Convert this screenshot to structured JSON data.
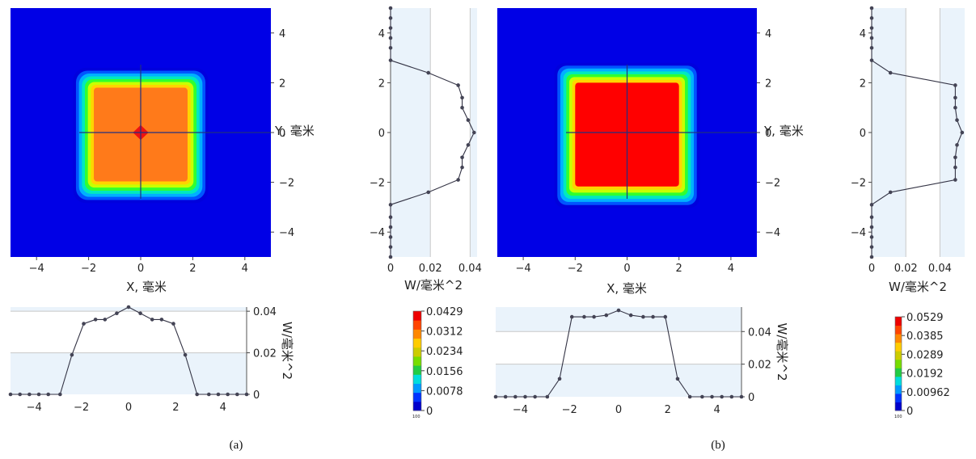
{
  "chart_data": [
    {
      "id": "a",
      "caption": "(a)",
      "heatmap": {
        "type": "heatmap",
        "xlabel": "X, 毫米",
        "ylabel": "Y, 毫米",
        "xlim": [
          -5,
          5
        ],
        "ylim": [
          -5,
          5
        ],
        "xticks": [
          "−4",
          "−2",
          "0",
          "2",
          "4"
        ],
        "yticks": [
          "4",
          "2",
          "0",
          "−2",
          "−4"
        ],
        "xtick_values": [
          -4,
          -2,
          0,
          2,
          4
        ],
        "ytick_values": [
          4,
          2,
          0,
          -2,
          -4
        ],
        "square_half_width": 2.6,
        "plateau_half_width": 1.8,
        "peak_half_width": 0.3,
        "corner_radius": 0.5,
        "plateau_color": "#ff7a1a",
        "peak_color": "#ee1111"
      },
      "profile_y": {
        "type": "line",
        "xlabel": "W/毫米^2",
        "xlim": [
          0,
          0.0435
        ],
        "xticks": [
          "0",
          "0.02",
          "0.04"
        ],
        "xtick_values": [
          0,
          0.02,
          0.04
        ],
        "ylim": [
          -5,
          5
        ],
        "yticks": [
          "4",
          "2",
          "0",
          "−2",
          "−4"
        ],
        "ytick_values": [
          4,
          2,
          0,
          -2,
          -4
        ],
        "y": [
          5,
          4.6,
          4.2,
          3.8,
          3.4,
          2.9,
          2.4,
          1.9,
          1.4,
          1.0,
          0.5,
          0,
          -0.5,
          -1.0,
          -1.4,
          -1.9,
          -2.4,
          -2.9,
          -3.4,
          -3.8,
          -4.2,
          -4.6,
          -5
        ],
        "values": [
          0,
          0,
          0,
          0,
          0,
          0,
          0.019,
          0.034,
          0.036,
          0.036,
          0.039,
          0.042,
          0.039,
          0.036,
          0.036,
          0.034,
          0.019,
          0,
          0,
          0,
          0,
          0,
          0
        ]
      },
      "profile_x": {
        "type": "line",
        "ylabel": "W/毫米^2",
        "xlim": [
          -5,
          5
        ],
        "xticks": [
          "−4",
          "−2",
          "0",
          "2",
          "4"
        ],
        "xtick_values": [
          -4,
          -2,
          0,
          2,
          4
        ],
        "ylim": [
          0,
          0.042
        ],
        "yticks": [
          "0.04",
          "0.02",
          "0"
        ],
        "ytick_values": [
          0.04,
          0.02,
          0
        ],
        "x": [
          -5,
          -4.6,
          -4.2,
          -3.8,
          -3.4,
          -2.9,
          -2.4,
          -1.9,
          -1.4,
          -1.0,
          -0.5,
          0,
          0.5,
          1.0,
          1.4,
          1.9,
          2.4,
          2.9,
          3.4,
          3.8,
          4.2,
          4.6,
          5
        ],
        "values": [
          0,
          0,
          0,
          0,
          0,
          0,
          0.019,
          0.034,
          0.036,
          0.036,
          0.039,
          0.042,
          0.039,
          0.036,
          0.036,
          0.034,
          0.019,
          0,
          0,
          0,
          0,
          0,
          0
        ]
      },
      "colorbar": {
        "labels": [
          "0.0429",
          "0.0312",
          "0.0234",
          "0.0156",
          "0.0078",
          "0"
        ],
        "footnote": "100"
      }
    },
    {
      "id": "b",
      "caption": "(b)",
      "heatmap": {
        "type": "heatmap",
        "xlabel": "X, 毫米",
        "ylabel": "Y, 毫米",
        "xlim": [
          -5,
          5
        ],
        "ylim": [
          -5,
          5
        ],
        "xticks": [
          "−4",
          "−2",
          "0",
          "2",
          "4"
        ],
        "yticks": [
          "4",
          "2",
          "0",
          "−2",
          "−4"
        ],
        "xtick_values": [
          -4,
          -2,
          0,
          2,
          4
        ],
        "ytick_values": [
          4,
          2,
          0,
          -2,
          -4
        ],
        "square_half_width": 2.8,
        "plateau_half_width": 2.0,
        "peak_half_width": 0,
        "corner_radius": 0.4,
        "plateau_color": "#ff0000",
        "peak_color": "#ff0000"
      },
      "profile_y": {
        "type": "line",
        "xlabel": "W/毫米^2",
        "xlim": [
          0,
          0.0545
        ],
        "xticks": [
          "0",
          "0.02",
          "0.04"
        ],
        "xtick_values": [
          0,
          0.02,
          0.04
        ],
        "ylim": [
          -5,
          5
        ],
        "yticks": [
          "4",
          "2",
          "0",
          "−2",
          "−4"
        ],
        "ytick_values": [
          4,
          2,
          0,
          -2,
          -4
        ],
        "y": [
          5,
          4.6,
          4.2,
          3.8,
          3.4,
          2.9,
          2.4,
          1.9,
          1.4,
          1.0,
          0.5,
          0,
          -0.5,
          -1.0,
          -1.4,
          -1.9,
          -2.4,
          -2.9,
          -3.4,
          -3.8,
          -4.2,
          -4.6,
          -5
        ],
        "values": [
          0,
          0,
          0,
          0,
          0,
          0,
          0.011,
          0.049,
          0.049,
          0.049,
          0.05,
          0.053,
          0.05,
          0.049,
          0.049,
          0.049,
          0.011,
          0,
          0,
          0,
          0,
          0,
          0
        ]
      },
      "profile_x": {
        "type": "line",
        "ylabel": "W/毫米^2",
        "xlim": [
          -5,
          5
        ],
        "xticks": [
          "−4",
          "−2",
          "0",
          "2",
          "4"
        ],
        "xtick_values": [
          -4,
          -2,
          0,
          2,
          4
        ],
        "ylim": [
          0,
          0.055
        ],
        "yticks": [
          "0.04",
          "0.02",
          "0"
        ],
        "ytick_values": [
          0.04,
          0.02,
          0
        ],
        "x": [
          -5,
          -4.6,
          -4.2,
          -3.8,
          -3.4,
          -2.9,
          -2.4,
          -1.9,
          -1.4,
          -1.0,
          -0.5,
          0,
          0.5,
          1.0,
          1.4,
          1.9,
          2.4,
          2.9,
          3.4,
          3.8,
          4.2,
          4.6,
          5
        ],
        "values": [
          0,
          0,
          0,
          0,
          0,
          0,
          0.011,
          0.049,
          0.049,
          0.049,
          0.05,
          0.053,
          0.05,
          0.049,
          0.049,
          0.049,
          0.011,
          0,
          0,
          0,
          0,
          0,
          0
        ]
      },
      "colorbar": {
        "labels": [
          "0.0529",
          "0.0385",
          "0.0289",
          "0.0192",
          "0.00962",
          "0"
        ],
        "footnote": "100"
      }
    }
  ]
}
